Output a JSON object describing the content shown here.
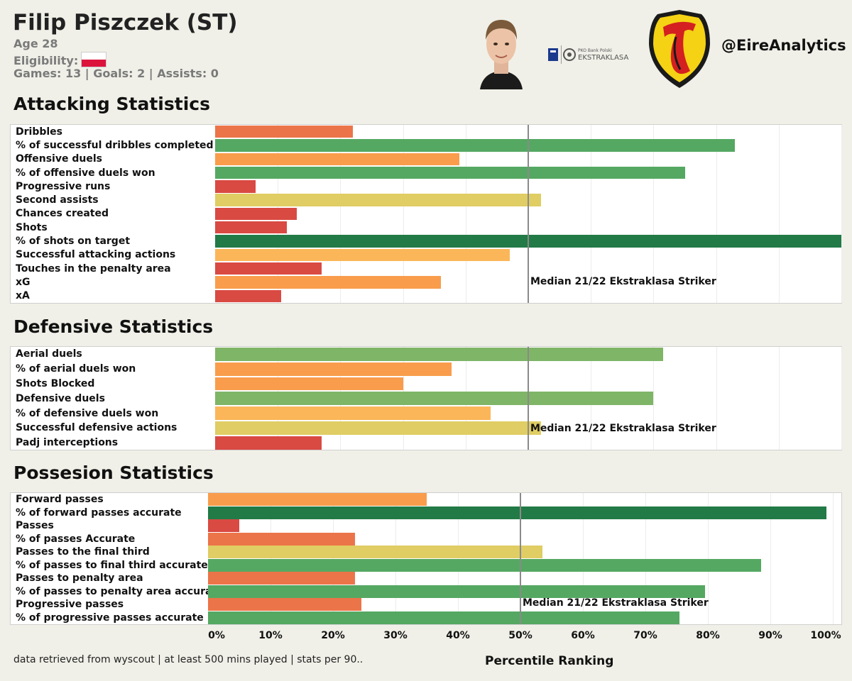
{
  "header": {
    "name": "Filip Piszczek (ST)",
    "age": "Age 28",
    "eligibility_label": "Eligibility:",
    "stats_line": "Games: 13 | Goals: 2 | Assists: 0",
    "handle": "@EireAnalytics",
    "league_logo_small_text": "PKO Bank Polski",
    "league_logo_text": "EKSTRAKLASA"
  },
  "colors": {
    "background": "#f0f0e8",
    "panel": "#ffffff",
    "red": "#d94a43",
    "orange_red": "#ec7449",
    "orange": "#f99d4c",
    "light_orange": "#fbb659",
    "yellow": "#e0cd63",
    "light_green": "#7fb567",
    "green": "#55a862",
    "dark_green": "#227a46",
    "median_line": "#8a8a8a"
  },
  "chart_data": [
    {
      "type": "bar",
      "orientation": "horizontal",
      "title": "Attacking Statistics",
      "xlim": [
        0,
        100
      ],
      "median": 50,
      "median_label": "Median 21/22 Ekstraklasa Striker",
      "categories": [
        "Dribbles",
        "% of successful dribbles completed",
        "Offensive duels",
        "% of offensive duels won",
        "Progressive runs",
        "Second assists",
        "Chances created",
        "Shots",
        "% of shots on target",
        "Successful attacking actions",
        "Touches in the penalty area",
        "xG",
        "xA"
      ],
      "values": [
        22,
        83,
        39,
        75,
        6.5,
        52,
        13,
        11.5,
        100,
        47,
        17,
        36,
        10.5
      ]
    },
    {
      "type": "bar",
      "orientation": "horizontal",
      "title": "Defensive Statistics",
      "xlim": [
        0,
        100
      ],
      "median": 50,
      "median_label": "Median 21/22 Ekstraklasa Striker",
      "categories": [
        "Aerial duels",
        "% of aerial duels won",
        "Shots Blocked",
        "Defensive duels",
        "% of defensive duels won",
        "Successful defensive actions",
        "Padj interceptions"
      ],
      "values": [
        71.5,
        37.7,
        30,
        70,
        44,
        52,
        17
      ]
    },
    {
      "type": "bar",
      "orientation": "horizontal",
      "title": "Possesion Statistics",
      "xlim": [
        0,
        100
      ],
      "median": 50,
      "median_label": "Median 21/22 Ekstraklasa Striker",
      "xlabel": "Percentile Ranking",
      "xticks": [
        "0%",
        "10%",
        "20%",
        "30%",
        "40%",
        "50%",
        "60%",
        "70%",
        "80%",
        "90%",
        "100%"
      ],
      "categories": [
        "Forward passes",
        "% of forward passes accurate",
        "Passes",
        "% of passes Accurate",
        "Passes to the final third",
        "% of passes to final third accurate",
        "Passes to penalty area",
        "% of passes to penalty area accurate",
        "Progressive passes",
        "% of progressive passes accurate"
      ],
      "values": [
        35,
        99,
        5,
        23.5,
        53.5,
        88.5,
        23.5,
        79.5,
        24.5,
        75.5
      ]
    }
  ],
  "footer": {
    "note": "data retrieved from wyscout | at least 500 mins played | stats per 90..",
    "axis_title": "Percentile Ranking"
  }
}
